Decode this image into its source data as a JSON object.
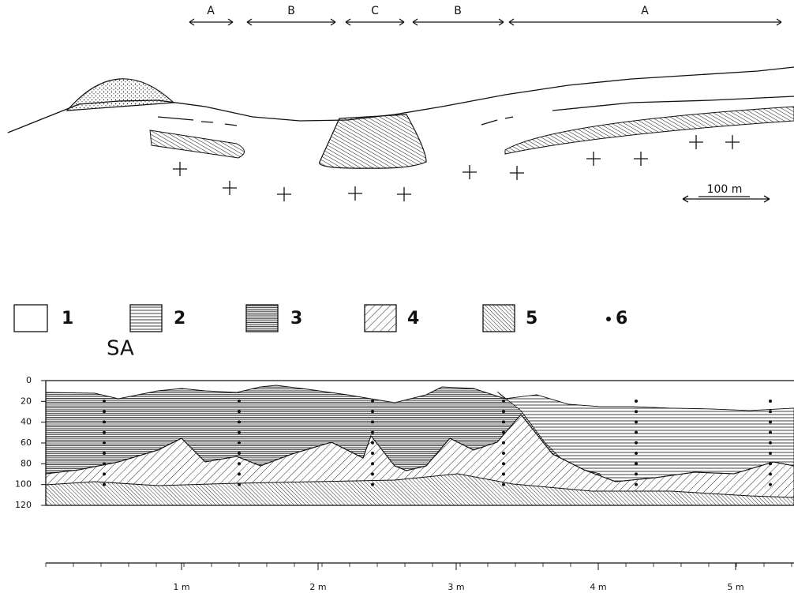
{
  "cross_section": {
    "zones": [
      "A",
      "B",
      "C",
      "B",
      "A"
    ],
    "scale_label": "100 m"
  },
  "legend": [
    "1",
    "2",
    "3",
    "4",
    "5",
    "6"
  ],
  "profile": {
    "title": "SA",
    "depth_ticks": [
      0,
      20,
      40,
      60,
      80,
      100,
      120
    ],
    "distance_ticks": [
      "1 m",
      "2 m",
      "3 m",
      "4 m",
      "5 m"
    ]
  }
}
